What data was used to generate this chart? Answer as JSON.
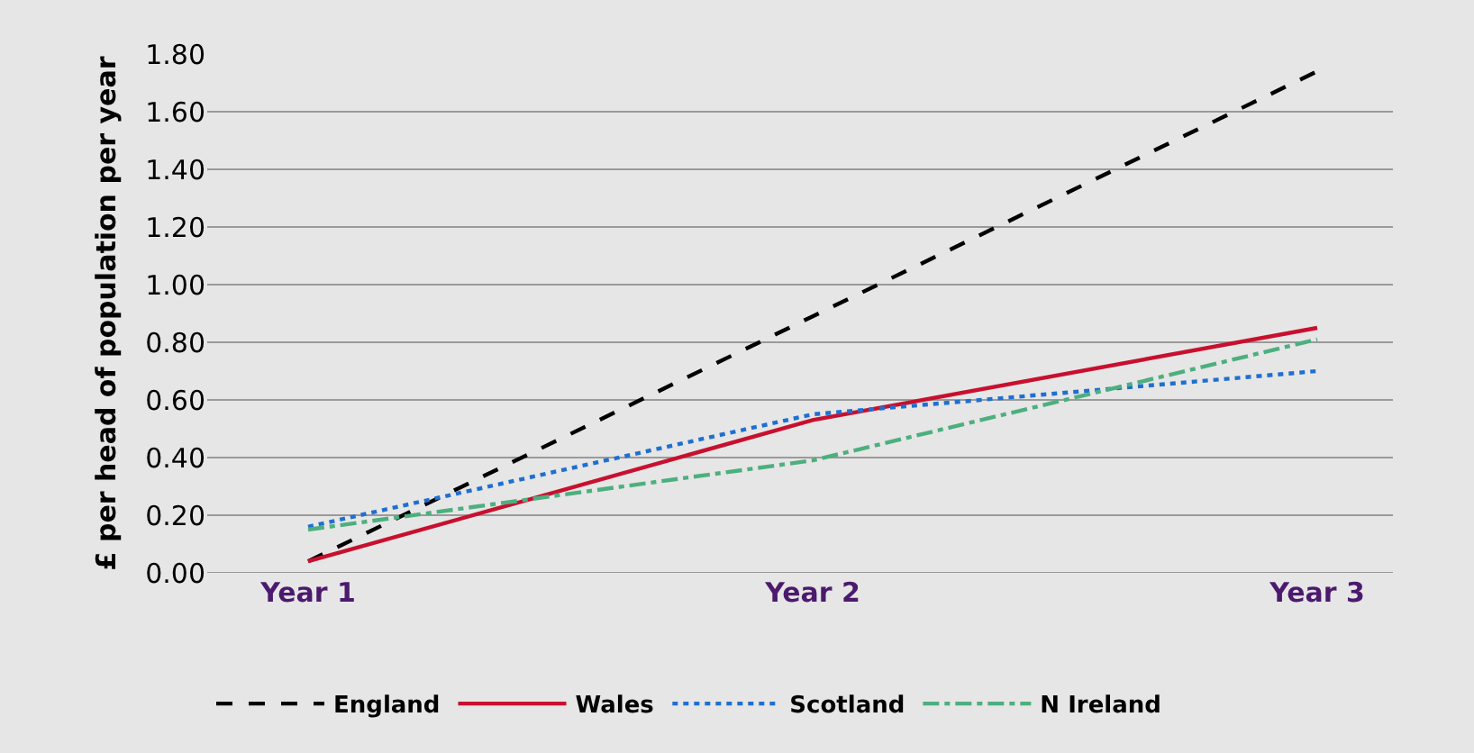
{
  "chart_data": {
    "type": "line",
    "ylabel": "£ per head of population per year",
    "categories": [
      "Year 1",
      "Year 2",
      "Year 3"
    ],
    "series": [
      {
        "name": "England",
        "color": "#000000",
        "line_style": "dashed",
        "values": [
          0.04,
          0.89,
          1.74
        ]
      },
      {
        "name": "Wales",
        "color": "#c8102e",
        "line_style": "solid",
        "values": [
          0.04,
          0.53,
          0.85
        ]
      },
      {
        "name": "Scotland",
        "color": "#1f6fd1",
        "line_style": "dotted",
        "values": [
          0.16,
          0.55,
          0.7
        ]
      },
      {
        "name": "N Ireland",
        "color": "#4daf7f",
        "line_style": "dashdot",
        "values": [
          0.15,
          0.39,
          0.81
        ]
      }
    ],
    "ylim": [
      0,
      1.8
    ],
    "yticks": [
      {
        "value": 0,
        "label": "0.00"
      },
      {
        "value": 0.2,
        "label": "0.20"
      },
      {
        "value": 0.4,
        "label": "0.40"
      },
      {
        "value": 0.6,
        "label": "0.60"
      },
      {
        "value": 0.8,
        "label": "0.80"
      },
      {
        "value": 1.0,
        "label": "1.00"
      },
      {
        "value": 1.2,
        "label": "1.20"
      },
      {
        "value": 1.4,
        "label": "1.40"
      },
      {
        "value": 1.6,
        "label": "1.60"
      },
      {
        "value": 1.8,
        "label": "1.80"
      }
    ],
    "grid": "y",
    "legend": "bottom",
    "marker": "none"
  }
}
